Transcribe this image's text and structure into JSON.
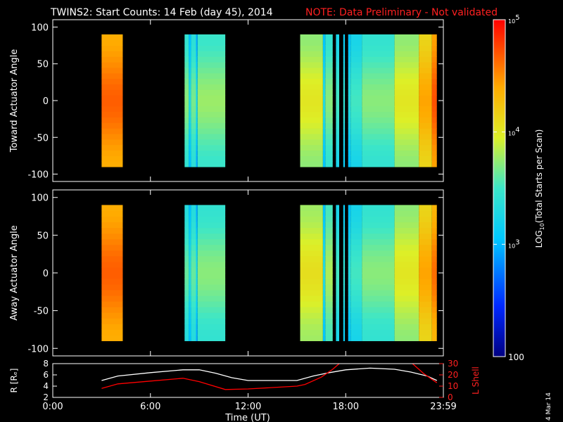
{
  "header": {
    "title": "TWINS2: Start Counts: 14 Feb (day  45), 2014",
    "note": "NOTE: Data Preliminary - Not validated"
  },
  "date_stamp": "4 Mar 14",
  "colors": {
    "background": "#000000",
    "axis": "#ffffff",
    "note": "#ff0000",
    "r_line": "#ffffff",
    "l_line": "#ff0000"
  },
  "chart_data": [
    {
      "type": "heatmap",
      "ylabel": "Toward Actuator Angle",
      "xlim": [
        0,
        24
      ],
      "ylim": [
        -110,
        110
      ],
      "yticks": [
        "-100",
        "-50",
        "0",
        "50",
        "100"
      ],
      "segments": [
        {
          "start": 3.0,
          "end": 4.3,
          "level": 4.55
        },
        {
          "start": 8.1,
          "end": 8.35,
          "level": 3.6
        },
        {
          "start": 8.35,
          "end": 8.5,
          "level": 3.2
        },
        {
          "start": 8.5,
          "end": 8.8,
          "level": 3.55
        },
        {
          "start": 8.8,
          "end": 8.9,
          "level": 3.1
        },
        {
          "start": 8.9,
          "end": 10.6,
          "level": 3.65
        },
        {
          "start": 15.2,
          "end": 16.6,
          "level": 3.9
        },
        {
          "start": 16.6,
          "end": 16.75,
          "level": 3.2
        },
        {
          "start": 16.75,
          "end": 17.2,
          "level": 3.6
        },
        {
          "start": 17.4,
          "end": 17.6,
          "level": 3.4
        },
        {
          "start": 17.85,
          "end": 17.95,
          "level": 3.3
        },
        {
          "start": 18.15,
          "end": 18.3,
          "level": 3.2
        },
        {
          "start": 18.3,
          "end": 19.0,
          "level": 3.4
        },
        {
          "start": 19.0,
          "end": 21.0,
          "level": 3.6
        },
        {
          "start": 21.0,
          "end": 22.5,
          "level": 3.9
        },
        {
          "start": 22.5,
          "end": 23.3,
          "level": 4.3
        },
        {
          "start": 23.3,
          "end": 23.6,
          "level": 4.6
        }
      ],
      "angle_range": [
        -90,
        90
      ]
    },
    {
      "type": "heatmap",
      "ylabel": "Away Actuator Angle",
      "xlim": [
        0,
        24
      ],
      "ylim": [
        -110,
        110
      ],
      "yticks": [
        "-100",
        "-50",
        "0",
        "50",
        "100"
      ],
      "segments": [
        {
          "start": 3.0,
          "end": 4.3,
          "level": 4.55
        },
        {
          "start": 8.1,
          "end": 8.35,
          "level": 3.5
        },
        {
          "start": 8.35,
          "end": 8.5,
          "level": 3.2
        },
        {
          "start": 8.5,
          "end": 8.8,
          "level": 3.5
        },
        {
          "start": 8.8,
          "end": 8.9,
          "level": 3.1
        },
        {
          "start": 8.9,
          "end": 10.6,
          "level": 3.6
        },
        {
          "start": 15.2,
          "end": 16.6,
          "level": 3.95
        },
        {
          "start": 16.6,
          "end": 16.75,
          "level": 3.2
        },
        {
          "start": 16.75,
          "end": 17.2,
          "level": 3.7
        },
        {
          "start": 17.4,
          "end": 17.6,
          "level": 3.4
        },
        {
          "start": 17.85,
          "end": 17.95,
          "level": 3.3
        },
        {
          "start": 18.15,
          "end": 18.3,
          "level": 3.2
        },
        {
          "start": 18.3,
          "end": 19.0,
          "level": 3.4
        },
        {
          "start": 19.0,
          "end": 21.0,
          "level": 3.6
        },
        {
          "start": 21.0,
          "end": 22.5,
          "level": 3.9
        },
        {
          "start": 22.5,
          "end": 23.3,
          "level": 4.3
        },
        {
          "start": 23.3,
          "end": 23.6,
          "level": 4.5
        }
      ],
      "angle_range": [
        -90,
        90
      ]
    },
    {
      "type": "line",
      "ylabel": "R [Rₑ]",
      "y2label": "L Shell",
      "xlabel": "Time (UT)",
      "xlim": [
        0,
        24
      ],
      "ylim": [
        2,
        8
      ],
      "y2lim": [
        0,
        30
      ],
      "yticks": [
        "2",
        "4",
        "6",
        "8"
      ],
      "y2ticks": [
        "0",
        "10",
        "20",
        "30"
      ],
      "xticks": [
        "0:00",
        "6:00",
        "12:00",
        "18:00",
        "23:59"
      ],
      "xtick_values": [
        0,
        6,
        12,
        18,
        24
      ],
      "series": [
        {
          "axis": "left",
          "color": "#ffffff",
          "points": [
            [
              3.0,
              5.0
            ],
            [
              4.0,
              5.8
            ],
            [
              6.0,
              6.4
            ],
            [
              8.0,
              6.9
            ],
            [
              9.0,
              6.9
            ],
            [
              10.0,
              6.3
            ],
            [
              11.0,
              5.5
            ],
            [
              12.0,
              5.0
            ],
            [
              15.0,
              5.0
            ],
            [
              16.0,
              5.8
            ],
            [
              17.0,
              6.4
            ],
            [
              18.0,
              6.9
            ],
            [
              19.5,
              7.2
            ],
            [
              21.0,
              7.0
            ],
            [
              22.0,
              6.5
            ],
            [
              23.0,
              5.8
            ],
            [
              23.6,
              5.0
            ]
          ]
        },
        {
          "axis": "right",
          "color": "#ff0000",
          "points": [
            [
              3.0,
              8.0
            ],
            [
              4.0,
              12.0
            ],
            [
              6.0,
              14.5
            ],
            [
              8.0,
              17.0
            ],
            [
              9.0,
              14.0
            ],
            [
              10.6,
              7.0
            ],
            [
              12.0,
              7.5
            ],
            [
              15.0,
              10.0
            ],
            [
              15.5,
              11.5
            ],
            [
              16.5,
              18.0
            ],
            [
              17.2,
              25.0
            ],
            [
              17.6,
              30.0
            ]
          ]
        },
        {
          "axis": "right",
          "color": "#ff0000",
          "points": [
            [
              22.1,
              30.0
            ],
            [
              22.8,
              21.0
            ],
            [
              23.6,
              13.0
            ]
          ]
        }
      ]
    }
  ],
  "colorbar": {
    "label": "LOG10(Total Starts per Scan)",
    "label_prefix": "LOG",
    "label_sub": "10",
    "label_suffix": "(Total Starts per Scan)",
    "range_log": [
      2,
      5
    ],
    "ticks": [
      {
        "value": 5,
        "base": "10",
        "exp": "5"
      },
      {
        "value": 4,
        "base": "10",
        "exp": "4"
      },
      {
        "value": 3,
        "base": "10",
        "exp": "3"
      },
      {
        "value": 2,
        "label": "100"
      }
    ]
  }
}
